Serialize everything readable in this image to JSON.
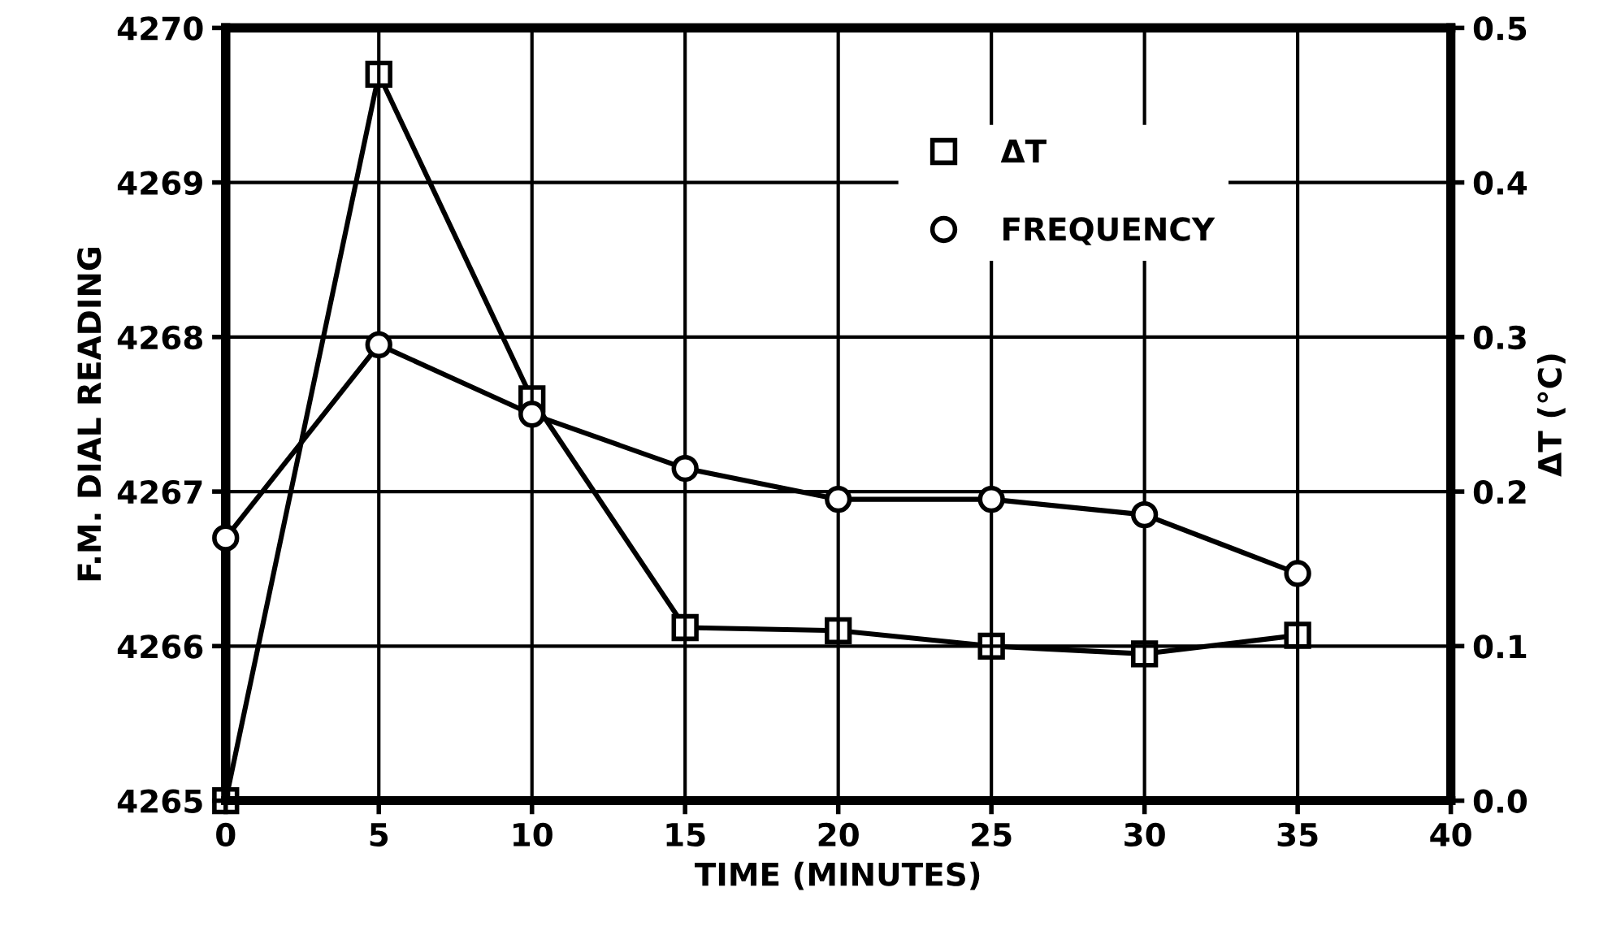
{
  "chart_data": {
    "type": "line",
    "xlabel": "TIME (MINUTES)",
    "ylabel": "F.M. DIAL READING",
    "y2label": "ΔT (°C)",
    "x": [
      0,
      5,
      10,
      15,
      20,
      25,
      30,
      35
    ],
    "series": [
      {
        "name": "ΔT",
        "color": "#000000",
        "marker": "square",
        "axis": "y2",
        "values": [
          0.0,
          0.47,
          0.26,
          0.112,
          0.11,
          0.1,
          0.095,
          0.107
        ]
      },
      {
        "name": "FREQUENCY",
        "color": "#000000",
        "marker": "circle",
        "values": [
          4266.7,
          4267.95,
          4267.5,
          4267.15,
          4266.95,
          4266.95,
          4266.85,
          4266.47
        ]
      }
    ],
    "xlim": [
      0,
      40
    ],
    "xticks": [
      0,
      5,
      10,
      15,
      20,
      25,
      30,
      35,
      40
    ],
    "ylim": [
      4265,
      4270
    ],
    "yticks": [
      4265,
      4266,
      4267,
      4268,
      4269,
      4270
    ],
    "y2lim": [
      0.0,
      0.5
    ],
    "y2ticks": [
      {
        "value": 0.0,
        "label": "0.0"
      },
      {
        "value": 0.1,
        "label": "0.1"
      },
      {
        "value": 0.2,
        "label": "0.2"
      },
      {
        "value": 0.3,
        "label": "0.3"
      },
      {
        "value": 0.4,
        "label": "0.4"
      },
      {
        "value": 0.5,
        "label": "0.5"
      }
    ],
    "grid": true,
    "legend": "top",
    "line_style": "solid"
  }
}
